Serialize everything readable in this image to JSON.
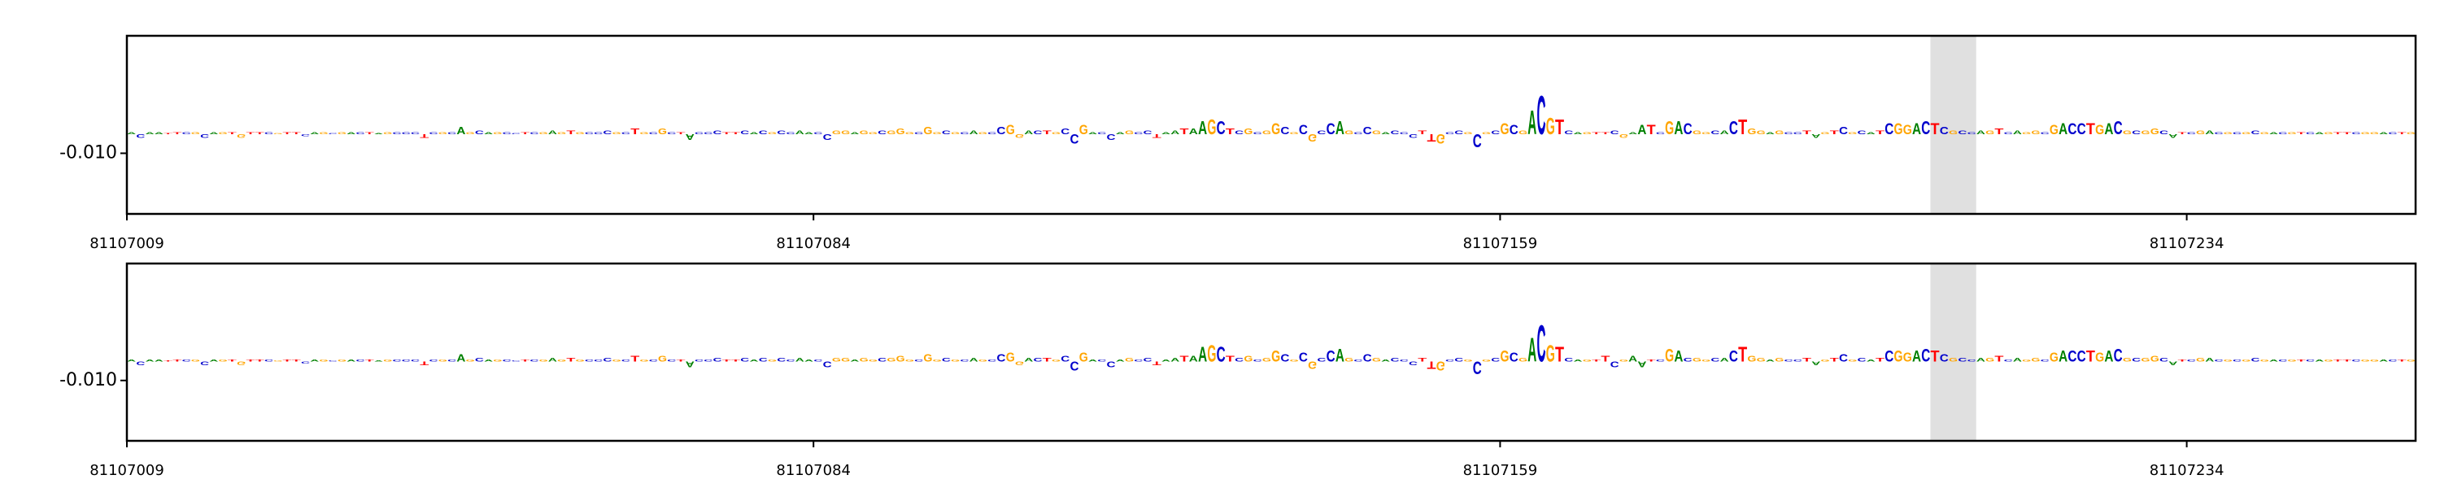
{
  "chart_data": [
    {
      "type": "logo",
      "xlim": [
        81107009,
        81107259
      ],
      "xticks": [
        81107009,
        81107084,
        81107159,
        81107234
      ],
      "ylim": [
        -0.042,
        0.052
      ],
      "yticks": [
        {
          "value": -0.01,
          "label": "-0.010"
        }
      ],
      "highlight": [
        81107206,
        81107211
      ],
      "colors": {
        "A": "#008000",
        "C": "#0000cc",
        "G": "#ffa500",
        "T": "#ff0000"
      },
      "sequence": "ACAATTCGCAGTGTTCGTTCAGCGACTAGCCCTCGCAGCAGCCTCGAGTGCCCGCTGCGCTACCCTTCACGCCAACCGGAGGCGGGCGGCGCAGCCGGACTGCCGACCAGCCTAATAAGCTCGCGGCGCGCCAGCCGACCCTTGCCGCGCGCGACGTCAGTTCGAATCGACGGCACTGGAGCCTAGTCGCATCGGACTCGCCAGTCAGGCGACCTGACGCGGCATCGACGCGCGACGTCAGTTCGGACTG",
      "heights": [
        0.001,
        -0.002,
        0.001,
        0.001,
        0.0005,
        0.001,
        0.001,
        0.001,
        -0.002,
        0.001,
        0.001,
        0.001,
        -0.002,
        0.001,
        0.001,
        0.001,
        0.0005,
        0.001,
        0.001,
        -0.001,
        0.001,
        0.001,
        0.0005,
        0.001,
        0.001,
        0.001,
        0.001,
        0.0005,
        0.001,
        0.001,
        0.001,
        0.001,
        -0.002,
        0.001,
        0.001,
        0.001,
        0.004,
        0.001,
        0.002,
        0.001,
        0.001,
        0.001,
        0.0005,
        0.001,
        0.001,
        0.001,
        0.002,
        0.001,
        0.002,
        0.001,
        0.001,
        0.001,
        0.002,
        0.001,
        0.001,
        0.003,
        0.001,
        0.001,
        0.003,
        0.001,
        0.001,
        -0.003,
        0.001,
        0.001,
        0.002,
        0.001,
        0.001,
        0.002,
        0.001,
        0.002,
        0.001,
        0.002,
        0.001,
        0.002,
        0.001,
        0.001,
        -0.003,
        0.002,
        0.002,
        0.001,
        0.002,
        0.001,
        0.002,
        0.002,
        0.003,
        0.001,
        0.001,
        0.004,
        0.001,
        0.002,
        0.001,
        0.001,
        0.002,
        0.001,
        0.001,
        0.004,
        0.005,
        -0.002,
        0.002,
        0.002,
        0.002,
        0.001,
        0.003,
        -0.005,
        0.005,
        0.001,
        0.001,
        -0.003,
        0.001,
        0.002,
        0.001,
        0.002,
        -0.002,
        0.001,
        0.002,
        0.003,
        0.003,
        0.007,
        0.008,
        0.007,
        0.003,
        0.002,
        0.003,
        0.001,
        0.002,
        0.006,
        0.004,
        0.001,
        0.005,
        -0.004,
        0.002,
        0.006,
        0.007,
        0.002,
        0.001,
        0.004,
        0.002,
        0.001,
        0.002,
        0.001,
        -0.002,
        0.002,
        -0.004,
        -0.005,
        0.001,
        0.002,
        0.001,
        -0.007,
        0.001,
        0.002,
        0.006,
        0.005,
        0.002,
        0.013,
        0.021,
        0.009,
        0.008,
        0.002,
        0.001,
        0.001,
        0.001,
        0.001,
        0.002,
        -0.002,
        0.001,
        0.005,
        0.005,
        0.001,
        0.007,
        0.007,
        0.006,
        0.002,
        0.001,
        0.002,
        0.002,
        0.007,
        0.008,
        0.003,
        0.002,
        0.001,
        0.002,
        0.001,
        0.001,
        0.002,
        -0.002,
        0.001,
        0.002,
        0.004,
        0.001,
        0.002,
        0.001,
        0.002,
        0.006,
        0.006,
        0.005,
        0.006,
        0.007,
        0.006,
        0.004,
        0.002,
        0.002,
        0.001,
        0.002,
        0.002,
        0.003,
        0.001,
        0.002,
        0.001,
        0.002,
        0.001,
        0.005,
        0.006,
        0.006,
        0.006,
        0.006,
        0.005,
        0.006,
        0.007,
        0.002,
        0.002,
        0.002,
        0.003,
        0.002,
        -0.002,
        0.001,
        0.001,
        0.002,
        0.002,
        0.001,
        0.001,
        0.001,
        0.001,
        0.002,
        0.001,
        0.001,
        0.001,
        0.001,
        0.001,
        0.001,
        0.001,
        0.001,
        0.001,
        0.001,
        0.001,
        0.001,
        0.001,
        0.001,
        0.001,
        0.001,
        0.001
      ]
    },
    {
      "type": "logo",
      "xlim": [
        81107009,
        81107259
      ],
      "xticks": [
        81107009,
        81107084,
        81107159,
        81107234
      ],
      "ylim": [
        -0.042,
        0.052
      ],
      "yticks": [
        {
          "value": -0.01,
          "label": "-0.010"
        }
      ],
      "highlight": [
        81107206,
        81107211
      ],
      "colors": {
        "A": "#008000",
        "C": "#0000cc",
        "G": "#ffa500",
        "T": "#ff0000"
      },
      "sequence": "ACAATTCGCAGTGTTCGTTCAGCGACTAGCCCTCGCAGCAGCCTCGAGTGCCCGCTGCGCTACCCTTCACGCCAACCGGAGGCGGGCGGCGCAGCCGGACTGCCGACCAGCCTAATAAGCTCGCGGCGCGCCAGCCGACCCTTGCCGCGCGCGACGTCAGTTCGAATCGACGGCACTGGAGCCTAGTCGCATCGGACTCGCCAGTCAGGCGACCTGACGCGGCATCGACGCGCGACGTCAGTTCGGACTG",
      "heights": [
        0.001,
        -0.002,
        0.001,
        0.001,
        0.0005,
        0.001,
        0.001,
        0.001,
        -0.002,
        0.001,
        0.001,
        0.001,
        -0.002,
        0.001,
        0.001,
        0.001,
        0.0005,
        0.001,
        0.001,
        -0.001,
        0.001,
        0.001,
        0.0005,
        0.001,
        0.001,
        0.001,
        0.001,
        0.0005,
        0.001,
        0.001,
        0.001,
        0.001,
        -0.002,
        0.001,
        0.001,
        0.001,
        0.004,
        0.001,
        0.002,
        0.001,
        0.001,
        0.001,
        0.0005,
        0.001,
        0.001,
        0.001,
        0.002,
        0.001,
        0.002,
        0.001,
        0.001,
        0.001,
        0.002,
        0.001,
        0.001,
        0.003,
        0.001,
        0.001,
        0.003,
        0.001,
        0.001,
        -0.003,
        0.001,
        0.001,
        0.002,
        0.001,
        0.001,
        0.002,
        0.001,
        0.002,
        0.001,
        0.002,
        0.001,
        0.002,
        0.001,
        0.001,
        -0.003,
        0.002,
        0.002,
        0.001,
        0.002,
        0.001,
        0.002,
        0.002,
        0.003,
        0.001,
        0.001,
        0.004,
        0.001,
        0.002,
        0.001,
        0.001,
        0.002,
        0.001,
        0.001,
        0.004,
        0.005,
        -0.002,
        0.002,
        0.002,
        0.002,
        0.001,
        0.003,
        -0.005,
        0.005,
        0.001,
        0.001,
        -0.003,
        0.001,
        0.002,
        0.001,
        0.002,
        -0.002,
        0.001,
        0.002,
        0.003,
        0.003,
        0.008,
        0.009,
        0.008,
        0.003,
        0.002,
        0.003,
        0.001,
        0.002,
        0.006,
        0.004,
        0.001,
        0.005,
        -0.004,
        0.002,
        0.006,
        0.007,
        0.002,
        0.001,
        0.004,
        0.002,
        0.001,
        0.002,
        0.001,
        -0.002,
        0.002,
        -0.004,
        -0.005,
        0.001,
        0.002,
        0.001,
        -0.007,
        0.001,
        0.002,
        0.006,
        0.005,
        0.002,
        0.013,
        0.02,
        0.009,
        0.008,
        0.002,
        0.001,
        0.001,
        0.001,
        0.003,
        -0.003,
        0.001,
        0.003,
        -0.003,
        0.001,
        0.001,
        0.007,
        0.006,
        0.002,
        0.002,
        0.001,
        0.002,
        0.002,
        0.006,
        0.008,
        0.003,
        0.002,
        0.001,
        0.002,
        0.001,
        0.001,
        0.002,
        -0.002,
        0.001,
        0.002,
        0.004,
        0.001,
        0.002,
        0.001,
        0.002,
        0.006,
        0.006,
        0.005,
        0.006,
        0.007,
        0.006,
        0.004,
        0.002,
        0.002,
        0.001,
        0.002,
        0.002,
        0.003,
        0.001,
        0.002,
        0.001,
        0.002,
        0.001,
        0.005,
        0.006,
        0.006,
        0.006,
        0.006,
        0.005,
        0.006,
        0.007,
        0.002,
        0.002,
        0.002,
        0.003,
        0.002,
        -0.002,
        0.001,
        0.001,
        0.002,
        0.002,
        0.001,
        0.001,
        0.001,
        0.001,
        0.002,
        0.001,
        0.001,
        0.001,
        0.001,
        0.001,
        0.001,
        0.001,
        0.001,
        0.001,
        0.001,
        0.001,
        0.001,
        0.001,
        0.001,
        0.001,
        0.001,
        0.001
      ]
    }
  ]
}
